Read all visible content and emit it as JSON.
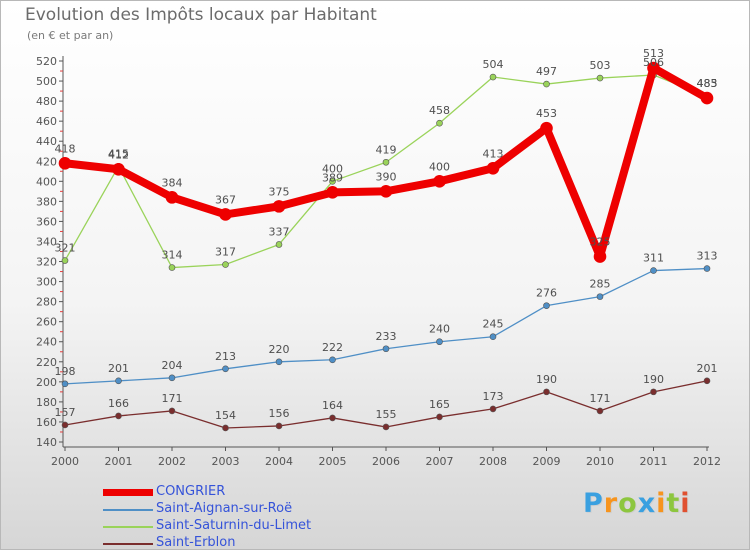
{
  "header": {
    "title": "Evolution des Impôts locaux par Habitant",
    "subtitle": "(en € et par an)"
  },
  "brand": {
    "text": "Proxiti",
    "letters": [
      {
        "ch": "P",
        "color": "#3aa0e0"
      },
      {
        "ch": "r",
        "color": "#f7941d"
      },
      {
        "ch": "o",
        "color": "#8dc63f"
      },
      {
        "ch": "x",
        "color": "#3aa0e0"
      },
      {
        "ch": "i",
        "color": "#f7941d"
      },
      {
        "ch": "t",
        "color": "#8dc63f"
      },
      {
        "ch": "i",
        "color": "#e05030"
      }
    ]
  },
  "chart_data": {
    "type": "line",
    "title": "Evolution des Impôts locaux par Habitant",
    "subtitle": "(en € et par an)",
    "xlabel": "",
    "ylabel": "",
    "categories": [
      "2000",
      "2001",
      "2002",
      "2003",
      "2004",
      "2005",
      "2006",
      "2007",
      "2008",
      "2009",
      "2010",
      "2011",
      "2012"
    ],
    "ylim": [
      140,
      520
    ],
    "ystep": 20,
    "grid": false,
    "legend_position": "bottom-left",
    "series": [
      {
        "name": "CONGRIER",
        "color": "#ee0000",
        "emphasis": true,
        "values": [
          418,
          412,
          384,
          367,
          375,
          389,
          390,
          400,
          413,
          453,
          325,
          513,
          483
        ]
      },
      {
        "name": "Saint-Aignan-sur-Roë",
        "color": "#4f8fc6",
        "emphasis": false,
        "values": [
          198,
          201,
          204,
          213,
          220,
          222,
          233,
          240,
          245,
          276,
          285,
          311,
          313
        ]
      },
      {
        "name": "Saint-Saturnin-du-Limet",
        "color": "#9ad35a",
        "emphasis": false,
        "values": [
          321,
          415,
          314,
          317,
          337,
          400,
          419,
          458,
          504,
          497,
          503,
          506,
          485
        ]
      },
      {
        "name": "Saint-Erblon",
        "color": "#7a2e2e",
        "emphasis": false,
        "values": [
          157,
          166,
          171,
          154,
          156,
          164,
          155,
          165,
          173,
          190,
          171,
          190,
          201
        ]
      }
    ]
  }
}
